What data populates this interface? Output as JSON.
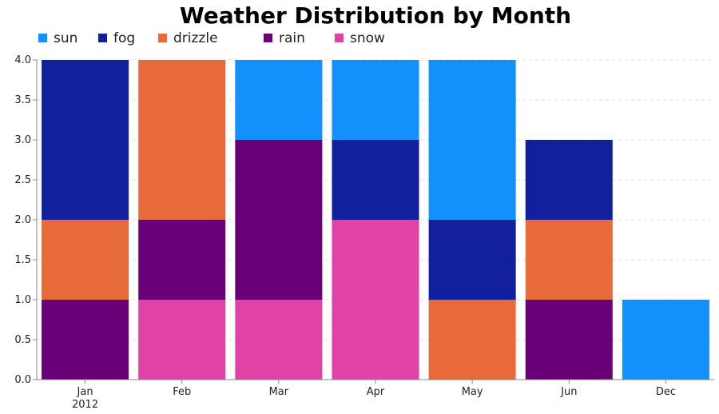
{
  "chart_data": {
    "type": "bar",
    "stacked": true,
    "title": "Weather Distribution by Month",
    "xlabel": "",
    "ylabel": "",
    "ylim": [
      0,
      4
    ],
    "yticks": [
      "0.0",
      "0.5",
      "1.0",
      "1.5",
      "2.0",
      "2.5",
      "3.0",
      "3.5",
      "4.0"
    ],
    "categories": [
      "Jan",
      "Feb",
      "Mar",
      "Apr",
      "May",
      "Jun",
      "Dec"
    ],
    "category_sublabels": [
      "2012",
      "",
      "",
      "",
      "",
      "",
      ""
    ],
    "legend_position": "top-left",
    "grid": true,
    "series": [
      {
        "name": "snow",
        "color": "#e042a6",
        "values": [
          0,
          1,
          1,
          2,
          0,
          0,
          0
        ]
      },
      {
        "name": "rain",
        "color": "#6a0078",
        "values": [
          1,
          1,
          2,
          0,
          0,
          1,
          0
        ]
      },
      {
        "name": "drizzle",
        "color": "#e8693a",
        "values": [
          1,
          2,
          0,
          0,
          1,
          1,
          0
        ]
      },
      {
        "name": "fog",
        "color": "#13209e",
        "values": [
          2,
          0,
          0,
          1,
          1,
          1,
          0
        ]
      },
      {
        "name": "sun",
        "color": "#1390fb",
        "values": [
          0,
          0,
          1,
          1,
          2,
          0,
          1
        ]
      }
    ],
    "legend_order": [
      "sun",
      "fog",
      "drizzle",
      "rain",
      "snow"
    ]
  }
}
